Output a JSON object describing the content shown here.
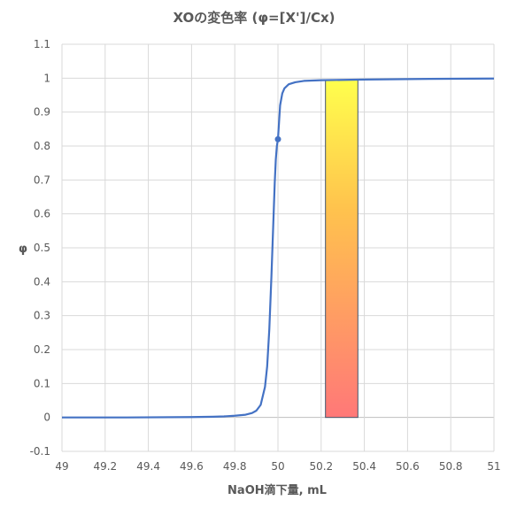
{
  "chart_data": {
    "type": "line",
    "title": "XOの変色率 (φ=[X']/Cx)",
    "xlabel": "NaOH滴下量, mL",
    "ylabel": "φ",
    "xlim": [
      49,
      51
    ],
    "ylim": [
      -0.1,
      1.1
    ],
    "x_ticks": [
      "49",
      "49.2",
      "49.4",
      "49.6",
      "49.8",
      "50",
      "50.2",
      "50.4",
      "50.6",
      "50.8",
      "51"
    ],
    "y_ticks": [
      "-0.1",
      "0",
      "0.1",
      "0.2",
      "0.3",
      "0.4",
      "0.5",
      "0.6",
      "0.7",
      "0.8",
      "0.9",
      "1",
      "1.1"
    ],
    "grid": true,
    "legend": "none",
    "series": [
      {
        "color": "#4472c4",
        "x": [
          49.0,
          49.3,
          49.6,
          49.7,
          49.75,
          49.8,
          49.85,
          49.88,
          49.9,
          49.92,
          49.94,
          49.95,
          49.96,
          49.97,
          49.98,
          49.985,
          49.99,
          49.995,
          50.0,
          50.005,
          50.01,
          50.02,
          50.03,
          50.05,
          50.08,
          50.12,
          50.2,
          50.4,
          50.7,
          51.0
        ],
        "y": [
          0.0,
          0.0,
          0.001,
          0.002,
          0.003,
          0.005,
          0.008,
          0.013,
          0.02,
          0.037,
          0.09,
          0.15,
          0.26,
          0.42,
          0.6,
          0.69,
          0.76,
          0.8,
          0.82,
          0.87,
          0.92,
          0.955,
          0.97,
          0.982,
          0.988,
          0.992,
          0.994,
          0.996,
          0.998,
          0.999
        ]
      }
    ],
    "marker": {
      "x": 50.0,
      "y": 0.82,
      "color": "#4472c4"
    },
    "band": {
      "x_start": 50.22,
      "x_end": 50.37,
      "y_bottom": 0.0,
      "y_top": 0.995,
      "color_top": "#ffff4d",
      "color_bottom": "#ff7878"
    }
  }
}
